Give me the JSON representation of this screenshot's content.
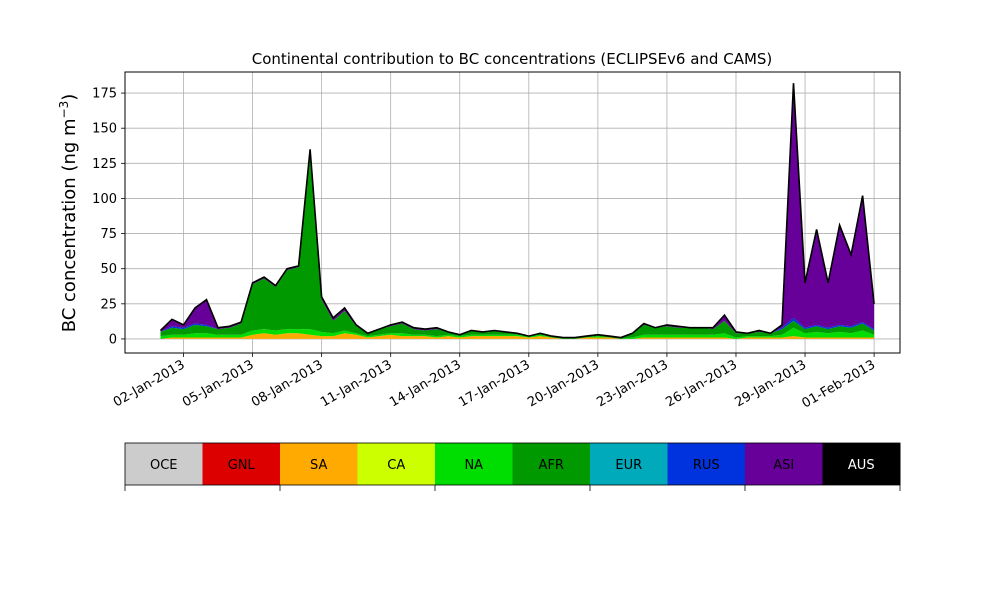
{
  "chart_data": {
    "type": "area",
    "title": "Continental contribution to BC concentrations (ECLIPSEv6 and CAMS)",
    "xlabel": "",
    "ylabel": "BC concentration (ng m",
    "ylabel_superscript": "−3",
    "ylabel_suffix": ")",
    "ylim": [
      -10,
      190
    ],
    "yticks": [
      0,
      25,
      50,
      75,
      100,
      125,
      150,
      175
    ],
    "xlim": [
      "2012-12-30T11:00",
      "2013-02-02T03:00"
    ],
    "xticks": [
      "2013-01-02",
      "2013-01-05",
      "2013-01-08",
      "2013-01-11",
      "2013-01-14",
      "2013-01-17",
      "2013-01-20",
      "2013-01-23",
      "2013-01-26",
      "2013-01-29",
      "2013-02-01"
    ],
    "xtick_labels": [
      "02-Jan-2013",
      "05-Jan-2013",
      "08-Jan-2013",
      "11-Jan-2013",
      "14-Jan-2013",
      "17-Jan-2013",
      "20-Jan-2013",
      "23-Jan-2013",
      "26-Jan-2013",
      "29-Jan-2013",
      "01-Feb-2013"
    ],
    "grid": true,
    "stack_order": [
      "SA",
      "NA",
      "AFR",
      "RUS",
      "ASI"
    ],
    "x": [
      "2013-01-01",
      "2013-01-01T12:00",
      "2013-01-02",
      "2013-01-02T12:00",
      "2013-01-03",
      "2013-01-03T12:00",
      "2013-01-04",
      "2013-01-04T12:00",
      "2013-01-05",
      "2013-01-05T12:00",
      "2013-01-06",
      "2013-01-06T12:00",
      "2013-01-07",
      "2013-01-07T12:00",
      "2013-01-08",
      "2013-01-08T12:00",
      "2013-01-09",
      "2013-01-09T12:00",
      "2013-01-10",
      "2013-01-10T12:00",
      "2013-01-11",
      "2013-01-11T12:00",
      "2013-01-12",
      "2013-01-12T12:00",
      "2013-01-13",
      "2013-01-13T12:00",
      "2013-01-14",
      "2013-01-14T12:00",
      "2013-01-15",
      "2013-01-15T12:00",
      "2013-01-16",
      "2013-01-16T12:00",
      "2013-01-17",
      "2013-01-17T12:00",
      "2013-01-18",
      "2013-01-18T12:00",
      "2013-01-19",
      "2013-01-19T12:00",
      "2013-01-20",
      "2013-01-20T12:00",
      "2013-01-21",
      "2013-01-21T12:00",
      "2013-01-22",
      "2013-01-22T12:00",
      "2013-01-23",
      "2013-01-23T12:00",
      "2013-01-24",
      "2013-01-24T12:00",
      "2013-01-25",
      "2013-01-25T12:00",
      "2013-01-26",
      "2013-01-26T12:00",
      "2013-01-27",
      "2013-01-27T12:00",
      "2013-01-28",
      "2013-01-28T12:00",
      "2013-01-29",
      "2013-01-29T12:00",
      "2013-01-30",
      "2013-01-30T12:00",
      "2013-01-31",
      "2013-01-31T12:00",
      "2013-02-01"
    ],
    "total": [
      6,
      14,
      10,
      22,
      28,
      8,
      9,
      12,
      40,
      44,
      38,
      50,
      52,
      135,
      30,
      15,
      22,
      10,
      4,
      7,
      10,
      12,
      8,
      7,
      8,
      5,
      3,
      6,
      5,
      6,
      5,
      4,
      2,
      4,
      2,
      1,
      1,
      2,
      3,
      2,
      1,
      4,
      11,
      8,
      10,
      9,
      8,
      8,
      8,
      17,
      5,
      4,
      6,
      4,
      10,
      182,
      40,
      78,
      40,
      81,
      60,
      102,
      25
    ],
    "series": [
      {
        "name": "SA",
        "color": "#ffaa00",
        "values": [
          0,
          1,
          1,
          1,
          1,
          1,
          1,
          1,
          3,
          4,
          3,
          4,
          4,
          3,
          2,
          2,
          4,
          3,
          1,
          2,
          3,
          2,
          2,
          2,
          1,
          2,
          1,
          2,
          2,
          2,
          2,
          2,
          1,
          2,
          1,
          0,
          0,
          1,
          1,
          1,
          0,
          0,
          1,
          1,
          1,
          1,
          1,
          1,
          1,
          1,
          0,
          1,
          1,
          1,
          1,
          2,
          1,
          1,
          1,
          1,
          1,
          1,
          1
        ]
      },
      {
        "name": "NA",
        "color": "#00dd00",
        "values": [
          2,
          2,
          2,
          3,
          3,
          2,
          2,
          2,
          3,
          3,
          3,
          3,
          3,
          4,
          3,
          2,
          2,
          1,
          1,
          1,
          1,
          2,
          1,
          1,
          1,
          1,
          1,
          1,
          1,
          1,
          1,
          1,
          1,
          1,
          0,
          0,
          0,
          0,
          1,
          0,
          0,
          1,
          2,
          2,
          2,
          2,
          2,
          2,
          2,
          3,
          1,
          1,
          1,
          1,
          2,
          6,
          3,
          4,
          3,
          4,
          3,
          5,
          2
        ]
      },
      {
        "name": "AFR",
        "color": "#009900",
        "values": [
          3,
          5,
          4,
          6,
          5,
          4,
          5,
          8,
          33,
          36,
          31,
          42,
          44,
          125,
          23,
          9,
          14,
          5,
          2,
          4,
          5,
          7,
          4,
          3,
          5,
          2,
          1,
          3,
          2,
          3,
          2,
          1,
          0,
          1,
          1,
          1,
          1,
          1,
          1,
          1,
          1,
          3,
          7,
          5,
          6,
          5,
          5,
          5,
          4,
          9,
          3,
          2,
          3,
          2,
          4,
          5,
          3,
          4,
          3,
          4,
          4,
          5,
          3
        ]
      },
      {
        "name": "RUS",
        "color": "#0033dd",
        "values": [
          0,
          1,
          1,
          1,
          1,
          0,
          0,
          0,
          0,
          0,
          0,
          0,
          0,
          0,
          0,
          0,
          0,
          0,
          0,
          0,
          0,
          0,
          0,
          0,
          0,
          0,
          0,
          0,
          0,
          0,
          0,
          0,
          0,
          0,
          0,
          0,
          0,
          0,
          0,
          0,
          0,
          0,
          0,
          0,
          0,
          0,
          0,
          0,
          0,
          0,
          0,
          0,
          0,
          0,
          1,
          2,
          1,
          1,
          1,
          1,
          1,
          1,
          1
        ]
      },
      {
        "name": "ASI",
        "color": "#660099",
        "values": [
          1,
          5,
          2,
          11,
          18,
          1,
          1,
          1,
          1,
          1,
          1,
          1,
          1,
          3,
          2,
          2,
          2,
          1,
          0,
          0,
          1,
          1,
          1,
          1,
          1,
          0,
          0,
          0,
          0,
          0,
          0,
          0,
          0,
          0,
          0,
          0,
          0,
          0,
          0,
          0,
          0,
          0,
          1,
          0,
          1,
          1,
          0,
          0,
          1,
          4,
          1,
          0,
          1,
          0,
          2,
          167,
          32,
          68,
          32,
          71,
          51,
          90,
          18
        ]
      }
    ]
  },
  "legend": {
    "items": [
      {
        "label": "OCE",
        "color": "#cccccc",
        "text_color": "#000000"
      },
      {
        "label": "GNL",
        "color": "#dd0000",
        "text_color": "#000000"
      },
      {
        "label": "SA",
        "color": "#ffaa00",
        "text_color": "#000000"
      },
      {
        "label": "CA",
        "color": "#ccff00",
        "text_color": "#000000"
      },
      {
        "label": "NA",
        "color": "#00dd00",
        "text_color": "#000000"
      },
      {
        "label": "AFR",
        "color": "#009900",
        "text_color": "#000000"
      },
      {
        "label": "EUR",
        "color": "#00aabb",
        "text_color": "#000000"
      },
      {
        "label": "RUS",
        "color": "#0033dd",
        "text_color": "#000000"
      },
      {
        "label": "ASI",
        "color": "#660099",
        "text_color": "#000000"
      },
      {
        "label": "AUS",
        "color": "#000000",
        "text_color": "#ffffff"
      }
    ]
  }
}
